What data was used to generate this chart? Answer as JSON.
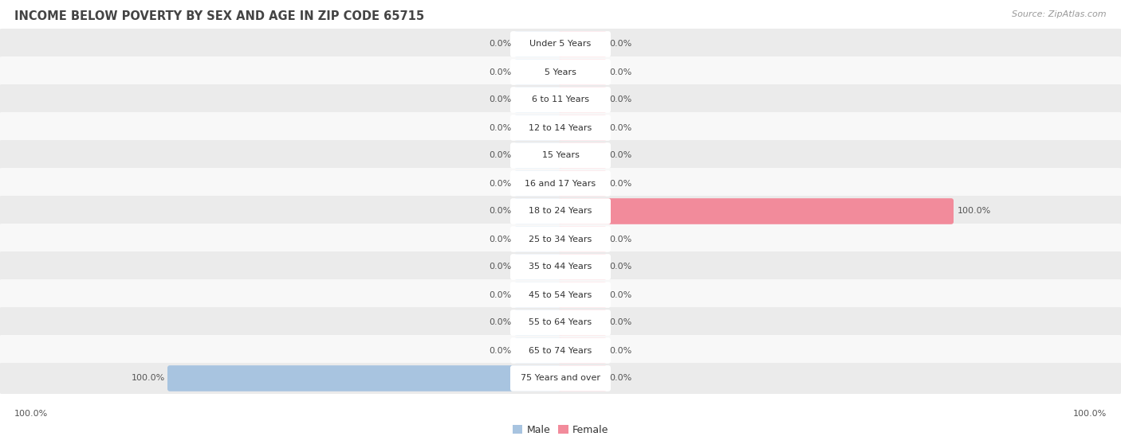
{
  "title": "INCOME BELOW POVERTY BY SEX AND AGE IN ZIP CODE 65715",
  "source": "Source: ZipAtlas.com",
  "categories": [
    "Under 5 Years",
    "5 Years",
    "6 to 11 Years",
    "12 to 14 Years",
    "15 Years",
    "16 and 17 Years",
    "18 to 24 Years",
    "25 to 34 Years",
    "35 to 44 Years",
    "45 to 54 Years",
    "55 to 64 Years",
    "65 to 74 Years",
    "75 Years and over"
  ],
  "male_values": [
    0.0,
    0.0,
    0.0,
    0.0,
    0.0,
    0.0,
    0.0,
    0.0,
    0.0,
    0.0,
    0.0,
    0.0,
    100.0
  ],
  "female_values": [
    0.0,
    0.0,
    0.0,
    0.0,
    0.0,
    0.0,
    100.0,
    0.0,
    0.0,
    0.0,
    0.0,
    0.0,
    0.0
  ],
  "male_color": "#a8c4e0",
  "female_color": "#f28b9b",
  "male_label": "Male",
  "female_label": "Female",
  "max_value": 100.0,
  "title_fontsize": 10.5,
  "source_fontsize": 8,
  "label_fontsize": 9,
  "category_fontsize": 8,
  "value_fontsize": 8,
  "bg_color": "#ffffff",
  "row_bg_colors": [
    "#ebebeb",
    "#f8f8f8"
  ]
}
